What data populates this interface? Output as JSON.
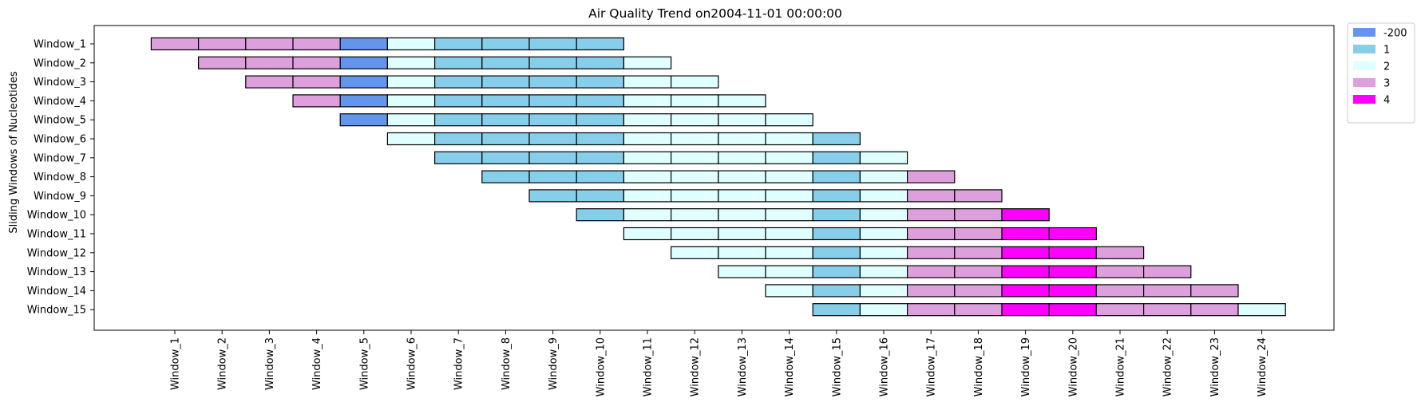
{
  "chart_data": {
    "type": "heatmap",
    "title": "Air Quality Trend on2004-11-01 00:00:00",
    "xlabel": "",
    "ylabel": "Sliding Windows of Nucleotides",
    "x_categories": [
      "Window_1",
      "Window_2",
      "Window_3",
      "Window_4",
      "Window_5",
      "Window_6",
      "Window_7",
      "Window_8",
      "Window_9",
      "Window_10",
      "Window_11",
      "Window_12",
      "Window_13",
      "Window_14",
      "Window_15",
      "Window_16",
      "Window_17",
      "Window_18",
      "Window_19",
      "Window_20",
      "Window_21",
      "Window_22",
      "Window_23",
      "Window_24"
    ],
    "y_categories": [
      "Window_1",
      "Window_2",
      "Window_3",
      "Window_4",
      "Window_5",
      "Window_6",
      "Window_7",
      "Window_8",
      "Window_9",
      "Window_10",
      "Window_11",
      "Window_12",
      "Window_13",
      "Window_14",
      "Window_15"
    ],
    "window_length": 10,
    "sequence": [
      3,
      3,
      3,
      3,
      -200,
      2,
      1,
      1,
      1,
      1,
      2,
      2,
      2,
      2,
      1,
      2,
      3,
      3,
      4,
      4,
      3,
      3,
      3,
      2
    ],
    "legend": {
      "placement": "outside-top-right",
      "entries": [
        {
          "label": "-200",
          "value": -200,
          "color": "#6495ED"
        },
        {
          "label": "1",
          "value": 1,
          "color": "#87CEEB"
        },
        {
          "label": "2",
          "value": 2,
          "color": "#E0FFFF"
        },
        {
          "label": "3",
          "value": 3,
          "color": "#DDA0DD"
        },
        {
          "label": "4",
          "value": 4,
          "color": "#FF00FF"
        }
      ]
    },
    "grid": false
  }
}
